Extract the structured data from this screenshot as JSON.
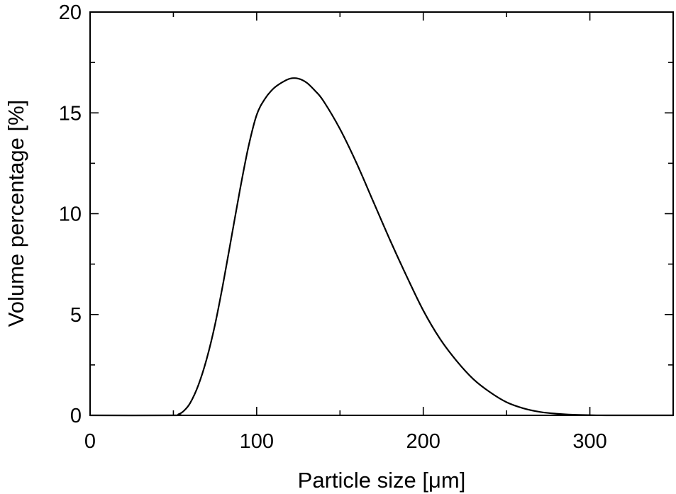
{
  "chart_data": {
    "type": "line",
    "title": "",
    "xlabel": "Particle size  [μm]",
    "ylabel": "Volume percentage  [%]",
    "xlim": [
      0,
      350
    ],
    "ylim": [
      0,
      20
    ],
    "x_major_ticks": [
      0,
      100,
      200,
      300
    ],
    "x_minor_ticks": [
      50,
      150,
      250,
      350
    ],
    "y_major_ticks": [
      0,
      5,
      10,
      15,
      20
    ],
    "y_minor_ticks": [
      2.5,
      7.5,
      12.5,
      17.5
    ],
    "x_tick_labels": [
      "0",
      "100",
      "200",
      "300"
    ],
    "y_tick_labels": [
      "0",
      "5",
      "10",
      "15",
      "20"
    ],
    "grid": false,
    "legend": "none",
    "line_color": "#000000",
    "series": [
      {
        "x": [
          0,
          50,
          53,
          56,
          60,
          65,
          70,
          75,
          80,
          85,
          90,
          95,
          100,
          105,
          110,
          115,
          120,
          125,
          130,
          135,
          140,
          150,
          160,
          170,
          180,
          190,
          200,
          210,
          220,
          230,
          240,
          250,
          260,
          270,
          280,
          290,
          300,
          310,
          350
        ],
        "y": [
          0,
          0,
          0.05,
          0.2,
          0.6,
          1.5,
          2.8,
          4.5,
          6.6,
          8.9,
          11.2,
          13.3,
          14.9,
          15.7,
          16.2,
          16.5,
          16.7,
          16.7,
          16.5,
          16.1,
          15.6,
          14.2,
          12.5,
          10.6,
          8.7,
          6.9,
          5.2,
          3.8,
          2.7,
          1.8,
          1.15,
          0.65,
          0.35,
          0.17,
          0.08,
          0.03,
          0.01,
          0,
          0
        ]
      }
    ]
  }
}
